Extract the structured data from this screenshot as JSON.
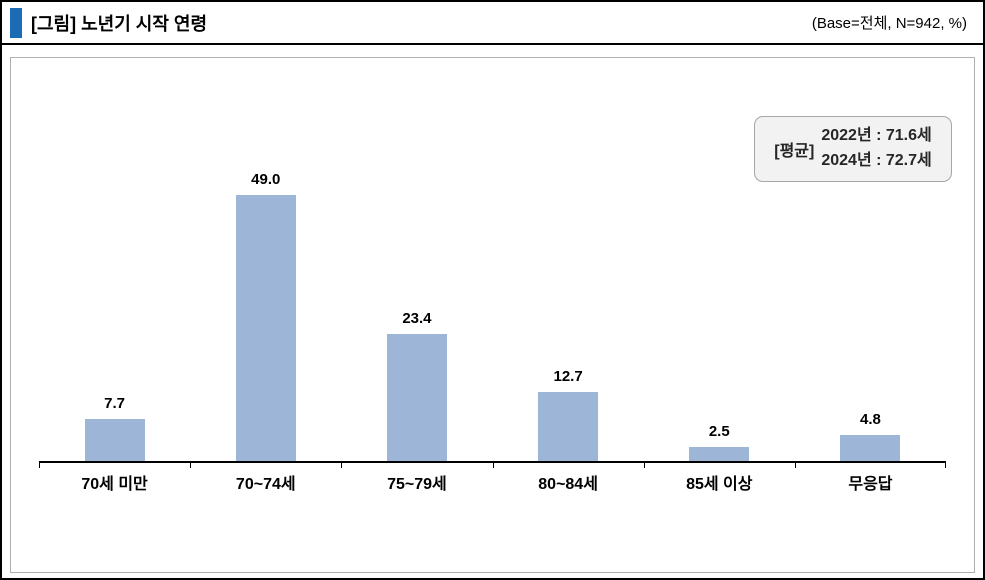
{
  "header": {
    "title": "[그림] 노년기 시작 연령",
    "base_note": "(Base=전체,  N=942,  %)"
  },
  "annotation": {
    "label": "[평균]",
    "lines": [
      "2022년 : 71.6세",
      "2024년 : 72.7세"
    ]
  },
  "chart_data": {
    "type": "bar",
    "title": "[그림] 노년기 시작 연령",
    "base_note": "(Base=전체, N=942, %)",
    "categories": [
      "70세 미만",
      "70~74세",
      "75~79세",
      "80~84세",
      "85세 이상",
      "무응답"
    ],
    "values": [
      7.7,
      49.0,
      23.4,
      12.7,
      2.5,
      4.8
    ],
    "value_format": "one_decimal",
    "unit": "%",
    "ylim": [
      0,
      55
    ],
    "grid": false,
    "legend": "none",
    "annotations": [
      "[평균] 2022년 : 71.6세",
      "2024년 : 72.7세"
    ]
  },
  "colors": {
    "bar_fill": "#9DB5D6",
    "title_accent": "#1B6BB5",
    "axis": "#000000",
    "annotation_bg": "#f2f2f2",
    "annotation_border": "#a6a6a6",
    "chart_box_border": "#b0b0b0"
  }
}
